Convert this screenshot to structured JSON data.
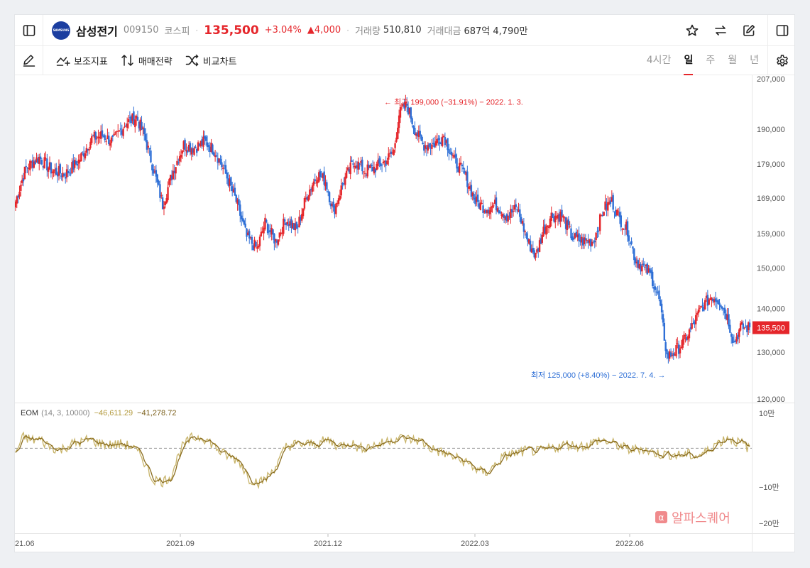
{
  "header": {
    "stock_name": "삼성전기",
    "stock_code": "009150",
    "market": "코스피",
    "price": "135,500",
    "change_pct": "+3.04%",
    "change_amt": "▲4,000",
    "volume_label": "거래량",
    "volume_value": "510,810",
    "amount_label": "거래대금",
    "amount_value": "687억 4,790만",
    "logo_text": "SAMSUNG"
  },
  "toolbar": {
    "indicators": "보조지표",
    "strategy": "매매전략",
    "compare": "비교차트",
    "periods": [
      "4시간",
      "일",
      "주",
      "월",
      "년"
    ],
    "active_period": "일"
  },
  "colors": {
    "up": "#e5262b",
    "down": "#2e6fd6",
    "eom": "#c8b46a",
    "eom_signal": "#8a6d1f"
  },
  "chart_data": [
    {
      "type": "candlestick",
      "y_axis_ticks": [
        207000,
        190000,
        179000,
        169000,
        159000,
        150000,
        140000,
        130000,
        120000
      ],
      "y_axis_labels": [
        "207,000",
        "190,000",
        "179,000",
        "169,000",
        "159,000",
        "150,000",
        "140,000",
        "130,000",
        "120,000"
      ],
      "y_scale": "log",
      "x_axis_labels": [
        "21.06",
        "2021.09",
        "2021.12",
        "2022.03",
        "2022.06"
      ],
      "current_price": 135500,
      "current_price_label": "135,500",
      "annotations": {
        "high": "최고 199,000 (−31.91%) − 2022. 1. 3.",
        "low": "최저 125,000 (+8.40%) − 2022. 7. 4."
      },
      "close_anchors": [
        [
          0,
          168000
        ],
        [
          8,
          178000
        ],
        [
          18,
          181000
        ],
        [
          28,
          177000
        ],
        [
          38,
          176000
        ],
        [
          48,
          180000
        ],
        [
          58,
          187000
        ],
        [
          66,
          188000
        ],
        [
          74,
          186000
        ],
        [
          84,
          192000
        ],
        [
          92,
          194000
        ],
        [
          98,
          188000
        ],
        [
          106,
          176000
        ],
        [
          112,
          167000
        ],
        [
          120,
          177000
        ],
        [
          128,
          185000
        ],
        [
          136,
          184000
        ],
        [
          144,
          186000
        ],
        [
          152,
          183000
        ],
        [
          160,
          176000
        ],
        [
          168,
          168000
        ],
        [
          176,
          158000
        ],
        [
          184,
          155000
        ],
        [
          190,
          162000
        ],
        [
          198,
          157000
        ],
        [
          206,
          163000
        ],
        [
          214,
          160000
        ],
        [
          222,
          170000
        ],
        [
          230,
          176000
        ],
        [
          236,
          174000
        ],
        [
          242,
          165000
        ],
        [
          250,
          174000
        ],
        [
          258,
          180000
        ],
        [
          266,
          177000
        ],
        [
          274,
          178000
        ],
        [
          282,
          180000
        ],
        [
          288,
          183000
        ],
        [
          292,
          195000
        ],
        [
          298,
          198000
        ],
        [
          304,
          190000
        ],
        [
          310,
          185000
        ],
        [
          318,
          185000
        ],
        [
          326,
          188000
        ],
        [
          334,
          180000
        ],
        [
          342,
          176000
        ],
        [
          350,
          168000
        ],
        [
          358,
          166000
        ],
        [
          366,
          167000
        ],
        [
          374,
          164000
        ],
        [
          382,
          166000
        ],
        [
          390,
          157000
        ],
        [
          396,
          153000
        ],
        [
          402,
          160000
        ],
        [
          408,
          164000
        ],
        [
          416,
          164000
        ],
        [
          424,
          158000
        ],
        [
          432,
          157000
        ],
        [
          440,
          157000
        ],
        [
          448,
          166000
        ],
        [
          454,
          168000
        ],
        [
          460,
          163000
        ],
        [
          466,
          160000
        ],
        [
          472,
          152000
        ],
        [
          478,
          150000
        ],
        [
          484,
          148000
        ],
        [
          490,
          142000
        ],
        [
          496,
          129000
        ],
        [
          502,
          130000
        ],
        [
          508,
          132000
        ],
        [
          514,
          135000
        ],
        [
          522,
          140000
        ],
        [
          530,
          143000
        ],
        [
          536,
          142000
        ],
        [
          542,
          138000
        ],
        [
          547,
          132000
        ],
        [
          552,
          135500
        ]
      ],
      "eom_anchors": [
        [
          0,
          -10000
        ],
        [
          6,
          28000
        ],
        [
          12,
          20000
        ],
        [
          18,
          22000
        ],
        [
          26,
          5000
        ],
        [
          34,
          -5000
        ],
        [
          42,
          10000
        ],
        [
          50,
          15000
        ],
        [
          56,
          22000
        ],
        [
          64,
          12000
        ],
        [
          72,
          8000
        ],
        [
          80,
          10000
        ],
        [
          88,
          5000
        ],
        [
          96,
          -20000
        ],
        [
          104,
          -75000
        ],
        [
          112,
          -82000
        ],
        [
          118,
          -70000
        ],
        [
          126,
          0
        ],
        [
          134,
          25000
        ],
        [
          142,
          28000
        ],
        [
          150,
          10000
        ],
        [
          156,
          -10000
        ],
        [
          162,
          -20000
        ],
        [
          170,
          -30000
        ],
        [
          178,
          -75000
        ],
        [
          186,
          -85000
        ],
        [
          192,
          -70000
        ],
        [
          200,
          -35000
        ],
        [
          206,
          5000
        ],
        [
          214,
          10000
        ],
        [
          222,
          10000
        ],
        [
          230,
          12000
        ],
        [
          238,
          20000
        ],
        [
          246,
          5000
        ],
        [
          254,
          15000
        ],
        [
          262,
          0
        ],
        [
          270,
          5000
        ],
        [
          278,
          10000
        ],
        [
          284,
          20000
        ],
        [
          292,
          25000
        ],
        [
          300,
          22000
        ],
        [
          308,
          18000
        ],
        [
          316,
          0
        ],
        [
          324,
          -10000
        ],
        [
          332,
          -20000
        ],
        [
          340,
          -30000
        ],
        [
          346,
          -40000
        ],
        [
          352,
          -55000
        ],
        [
          358,
          -60000
        ],
        [
          364,
          -45000
        ],
        [
          370,
          -25000
        ],
        [
          376,
          -15000
        ],
        [
          382,
          -12000
        ],
        [
          390,
          -5000
        ],
        [
          398,
          -8000
        ],
        [
          406,
          -2000
        ],
        [
          414,
          5000
        ],
        [
          420,
          10000
        ],
        [
          428,
          5000
        ],
        [
          436,
          8000
        ],
        [
          444,
          20000
        ],
        [
          452,
          15000
        ],
        [
          460,
          5000
        ],
        [
          468,
          -5000
        ],
        [
          476,
          0
        ],
        [
          484,
          -10000
        ],
        [
          492,
          -15000
        ],
        [
          500,
          -15000
        ],
        [
          506,
          -18000
        ],
        [
          512,
          -15000
        ],
        [
          518,
          -20000
        ],
        [
          526,
          -10000
        ],
        [
          532,
          10000
        ],
        [
          538,
          18000
        ],
        [
          542,
          28000
        ],
        [
          546,
          20000
        ],
        [
          550,
          15000
        ],
        [
          554,
          10000
        ],
        [
          558,
          0
        ],
        [
          562,
          -10000
        ],
        [
          566,
          -15000
        ]
      ]
    }
  ],
  "indicator": {
    "title": "EOM",
    "params": "(14, 3, 10000)",
    "value1": "−46,611.29",
    "value2": "−41,278.72",
    "y_axis_labels": [
      "10만",
      "−10만",
      "−20만"
    ]
  },
  "watermark": "알파스퀘어"
}
